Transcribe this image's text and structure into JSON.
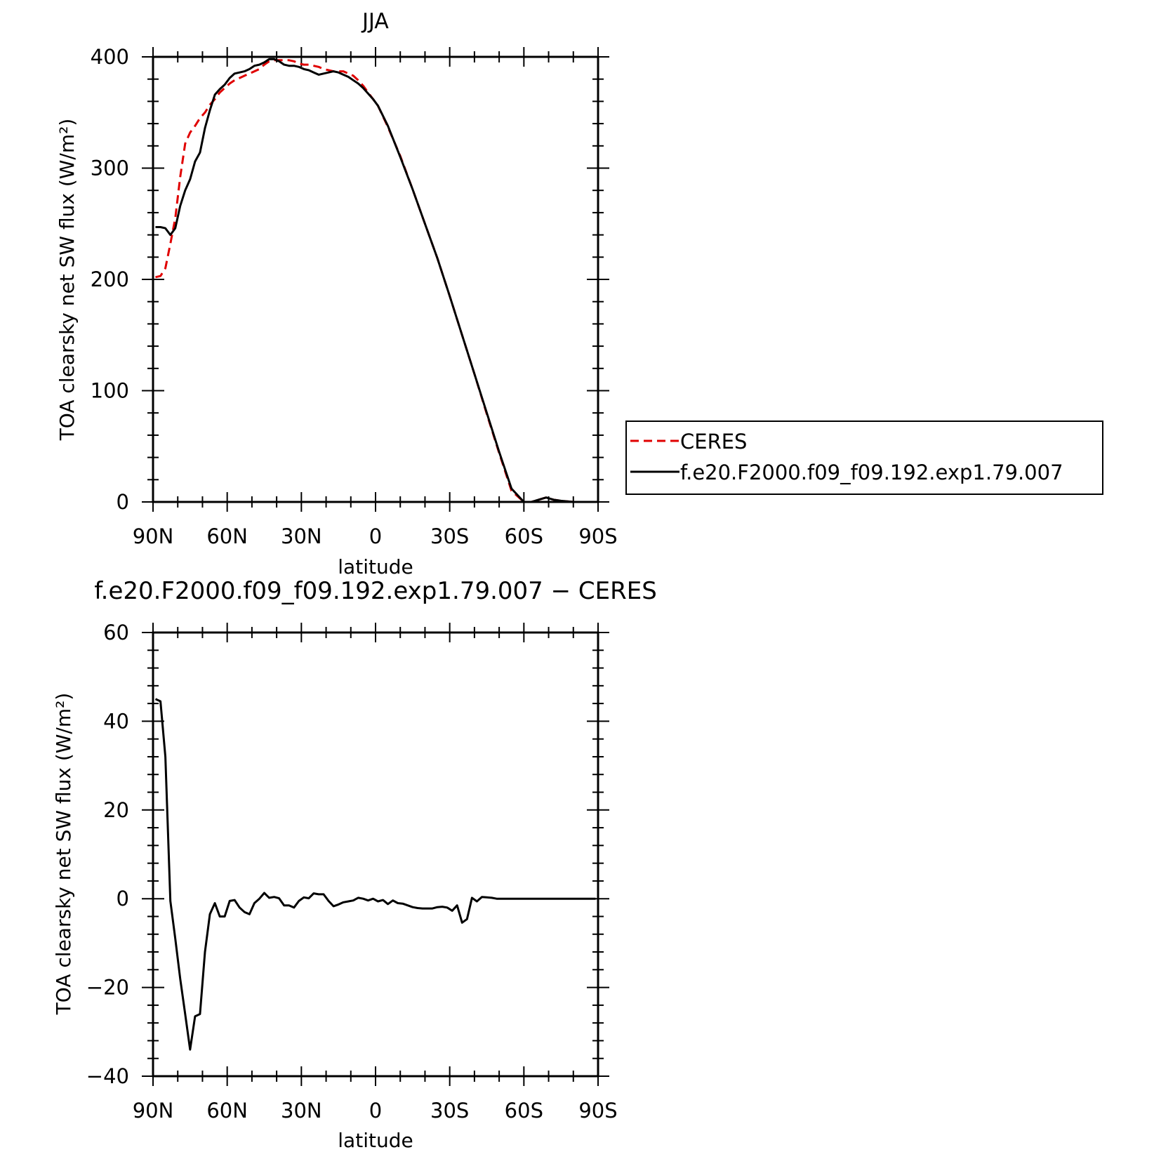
{
  "colors": {
    "ceres": "#e00000",
    "model": "#000000",
    "axes": "#000000",
    "background": "#ffffff"
  },
  "legend": {
    "items": [
      {
        "label": "CERES",
        "color": "#e00000",
        "style": "dashed"
      },
      {
        "label": "f.e20.F2000.f09_f09.192.exp1.79.007",
        "color": "#000000",
        "style": "solid"
      }
    ]
  },
  "chart_data": [
    {
      "type": "line",
      "title": "JJA",
      "xlabel": "latitude",
      "ylabel": "TOA clearsky net SW flux (W/m²)",
      "xlim": [
        90,
        -90
      ],
      "ylim": [
        0,
        400
      ],
      "x_ticks": [
        {
          "value": 90,
          "label": "90N"
        },
        {
          "value": 60,
          "label": "60N"
        },
        {
          "value": 30,
          "label": "30N"
        },
        {
          "value": 0,
          "label": "0"
        },
        {
          "value": -30,
          "label": "30S"
        },
        {
          "value": -60,
          "label": "60S"
        },
        {
          "value": -90,
          "label": "90S"
        }
      ],
      "y_ticks": [
        {
          "value": 0,
          "label": "0"
        },
        {
          "value": 100,
          "label": "100"
        },
        {
          "value": 200,
          "label": "200"
        },
        {
          "value": 300,
          "label": "300"
        },
        {
          "value": 400,
          "label": "400"
        }
      ],
      "legend_position": "right",
      "series": [
        {
          "name": "CERES",
          "style": "dashed",
          "color": "#e00000",
          "x": [
            89,
            87,
            85,
            83,
            81,
            79,
            77,
            75,
            73,
            71,
            69,
            67,
            65,
            63,
            61,
            59,
            57,
            55,
            53,
            51,
            49,
            47,
            45,
            43,
            41,
            39,
            37,
            35,
            33,
            31,
            29,
            27,
            25,
            23,
            21,
            19,
            17,
            15,
            13,
            11,
            9,
            7,
            5,
            3,
            1,
            -1,
            -5,
            -10,
            -15,
            -20,
            -25,
            -30,
            -35,
            -40,
            -45,
            -50,
            -55,
            -60,
            -63,
            -66,
            -69,
            -72,
            -75,
            -80,
            -85,
            -89
          ],
          "y": [
            202,
            203,
            210,
            232,
            255,
            292,
            322,
            332,
            338,
            345,
            350,
            357,
            362,
            368,
            372,
            376,
            379,
            381,
            383,
            385,
            387,
            389,
            393,
            396,
            397,
            397,
            397,
            397,
            396,
            394,
            393,
            393,
            392,
            391,
            389,
            388,
            387,
            387,
            387,
            385,
            383,
            379,
            374,
            368,
            362,
            356,
            337,
            311,
            281,
            250,
            219,
            185,
            150,
            115,
            79,
            44,
            10,
            -20,
            -5,
            2,
            4,
            2,
            1,
            0,
            0,
            0
          ]
        },
        {
          "name": "f.e20.F2000.f09_f09.192.exp1.79.007",
          "style": "solid",
          "color": "#000000",
          "x": [
            89,
            87,
            85,
            83,
            81,
            79,
            77,
            75,
            73,
            71,
            69,
            67,
            65,
            63,
            61,
            59,
            57,
            55,
            53,
            51,
            49,
            47,
            45,
            43,
            41,
            39,
            37,
            35,
            33,
            31,
            29,
            27,
            25,
            23,
            21,
            19,
            17,
            15,
            13,
            11,
            9,
            7,
            5,
            3,
            1,
            -1,
            -5,
            -10,
            -15,
            -20,
            -25,
            -30,
            -35,
            -40,
            -45,
            -50,
            -55,
            -60,
            -63,
            -66,
            -69,
            -72,
            -75,
            -80,
            -85,
            -89
          ],
          "y": [
            247,
            247,
            246,
            240,
            246,
            266,
            280,
            290,
            306,
            314,
            336,
            352,
            366,
            371,
            375,
            381,
            385,
            386,
            387,
            389,
            392,
            393,
            395,
            398,
            398,
            396,
            393,
            392,
            392,
            391,
            389,
            388,
            386,
            384,
            385,
            386,
            387,
            386,
            384,
            382,
            379,
            376,
            372,
            367,
            362,
            356,
            338,
            310,
            281,
            250,
            219,
            185,
            150,
            115,
            80,
            45,
            12,
            -15,
            -6,
            2,
            4,
            2,
            1,
            0,
            0,
            0
          ]
        }
      ]
    },
    {
      "type": "line",
      "title": "f.e20.F2000.f09_f09.192.exp1.79.007 − CERES",
      "xlabel": "latitude",
      "ylabel": "TOA clearsky net SW flux (W/m²)",
      "xlim": [
        90,
        -90
      ],
      "ylim": [
        -40,
        60
      ],
      "x_ticks": [
        {
          "value": 90,
          "label": "90N"
        },
        {
          "value": 60,
          "label": "60N"
        },
        {
          "value": 30,
          "label": "30N"
        },
        {
          "value": 0,
          "label": "0"
        },
        {
          "value": -30,
          "label": "30S"
        },
        {
          "value": -60,
          "label": "60S"
        },
        {
          "value": -90,
          "label": "90S"
        }
      ],
      "y_ticks": [
        {
          "value": -40,
          "label": "−40"
        },
        {
          "value": -20,
          "label": "−20"
        },
        {
          "value": 0,
          "label": "0"
        },
        {
          "value": 20,
          "label": "20"
        },
        {
          "value": 40,
          "label": "40"
        },
        {
          "value": 60,
          "label": "60"
        }
      ],
      "series": [
        {
          "style": "solid",
          "color": "#000000",
          "x": [
            89,
            87,
            85,
            83,
            81,
            79,
            77,
            75,
            73,
            71,
            69,
            67,
            65,
            63,
            61,
            59,
            57,
            55,
            53,
            51,
            49,
            47,
            45,
            43,
            41,
            39,
            37,
            35,
            33,
            31,
            29,
            27,
            25,
            23,
            21,
            19,
            17,
            15,
            13,
            11,
            9,
            7,
            5,
            3,
            1,
            -1,
            -3,
            -5,
            -7,
            -9,
            -11,
            -13,
            -15,
            -17,
            -19,
            -21,
            -23,
            -25,
            -27,
            -29,
            -31,
            -33,
            -35,
            -37,
            -39,
            -41,
            -43,
            -45,
            -47,
            -49,
            -51,
            -53,
            -55,
            -57,
            -59,
            -61,
            -63,
            -65,
            -67,
            -69,
            -71,
            -73,
            -75,
            -77,
            -79,
            -81,
            -83,
            -85,
            -87,
            -89
          ],
          "y": [
            45,
            44.5,
            32,
            -0.5,
            -9,
            -18,
            -26,
            -34,
            -26.5,
            -26,
            -12,
            -3.5,
            -1,
            -4,
            -4,
            -0.5,
            -0.3,
            -2,
            -3,
            -3.5,
            -1,
            0,
            1.3,
            0.2,
            0.4,
            0.1,
            -1.5,
            -1.5,
            -2,
            -0.5,
            0.3,
            0.1,
            1.2,
            1,
            1,
            -0.5,
            -1.7,
            -1.3,
            -0.8,
            -0.6,
            -0.4,
            0.2,
            0,
            -0.4,
            0,
            -0.6,
            -0.3,
            -1.2,
            -0.4,
            -1,
            -1.1,
            -1.5,
            -1.9,
            -2.1,
            -2.2,
            -2.2,
            -2.2,
            -1.9,
            -1.8,
            -2,
            -2.7,
            -1.5,
            -5.4,
            -4.6,
            0.2,
            -0.6,
            0.4,
            0.3,
            0.2,
            0,
            0,
            0,
            0,
            0,
            0,
            0,
            0,
            0,
            0,
            0,
            0,
            0,
            0,
            0,
            0,
            0,
            0,
            0,
            0,
            0
          ]
        }
      ]
    }
  ]
}
